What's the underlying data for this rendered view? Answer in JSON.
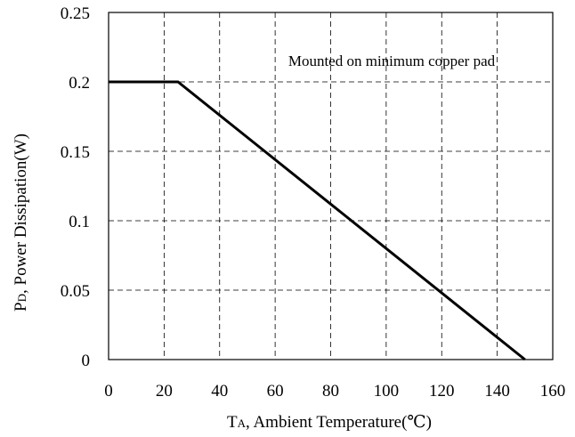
{
  "chart_data": {
    "type": "line",
    "annotation": "Mounted on minimum copper pad",
    "xlabel": {
      "symbol": "T",
      "subscript": "A",
      "text": ", Ambient Temperature(℃)"
    },
    "ylabel": {
      "symbol": "P",
      "subscript": "D",
      "text": ", Power Dissipation(W)"
    },
    "xlim": [
      0,
      160
    ],
    "ylim": [
      0,
      0.25
    ],
    "x_ticks": [
      0,
      20,
      40,
      60,
      80,
      100,
      120,
      140,
      160
    ],
    "x_tick_labels": [
      "0",
      "20",
      "40",
      "60",
      "80",
      "100",
      "120",
      "140",
      "160"
    ],
    "y_ticks": [
      0,
      0.05,
      0.1,
      0.15,
      0.2,
      0.25
    ],
    "y_tick_labels": [
      "0",
      "0.05",
      "0.1",
      "0.15",
      "0.2",
      "0.25"
    ],
    "grid": true,
    "grid_style": "dashed",
    "series": [
      {
        "x": [
          0,
          25,
          150
        ],
        "y": [
          0.2,
          0.2,
          0
        ],
        "color": "#000000"
      }
    ]
  }
}
